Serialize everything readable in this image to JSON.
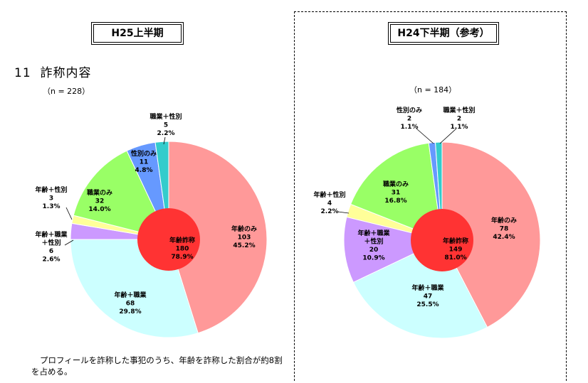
{
  "left": {
    "period": "H25上半期",
    "section_number": "11",
    "section_title": "詐称内容",
    "n_label": "（n = 228）"
  },
  "right": {
    "period": "H24下半期（参考）",
    "n_label": "（n = 184）"
  },
  "note": {
    "line1": "プロフィールを詐称した事犯のうち、年齢を詐称した割合が約8割",
    "line2": "を占める。"
  },
  "colors": {
    "age_only": "#ff9999",
    "age_job": "#ccffff",
    "age_job_sex": "#cc99ff",
    "age_sex": "#ffff99",
    "job_only": "#99ff66",
    "sex_only": "#6699ff",
    "job_sex": "#33cccc",
    "inner": "#ff3333"
  },
  "chart_data": [
    {
      "type": "pie",
      "title": "H25上半期",
      "n": 228,
      "slices": [
        {
          "label": "年齢のみ",
          "count": "103",
          "pct": "45.2%",
          "value": 103,
          "color_key": "age_only"
        },
        {
          "label": "年齢＋職業",
          "count": "68",
          "pct": "29.8%",
          "value": 68,
          "color_key": "age_job"
        },
        {
          "label": "年齢＋職業＋性別",
          "count": "6",
          "pct": "2.6%",
          "value": 6,
          "color_key": "age_job_sex"
        },
        {
          "label": "年齢＋性別",
          "count": "3",
          "pct": "1.3%",
          "value": 3,
          "color_key": "age_sex"
        },
        {
          "label": "職業のみ",
          "count": "32",
          "pct": "14.0%",
          "value": 32,
          "color_key": "job_only"
        },
        {
          "label": "性別のみ",
          "count": "11",
          "pct": "4.8%",
          "value": 11,
          "color_key": "sex_only"
        },
        {
          "label": "職業＋性別",
          "count": "5",
          "pct": "2.2%",
          "value": 5,
          "color_key": "job_sex"
        }
      ],
      "inner": {
        "label": "年齢詐称",
        "count": "180",
        "pct": "78.9%",
        "value": 180
      }
    },
    {
      "type": "pie",
      "title": "H24下半期（参考）",
      "n": 184,
      "slices": [
        {
          "label": "年齢のみ",
          "count": "78",
          "pct": "42.4%",
          "value": 78,
          "color_key": "age_only"
        },
        {
          "label": "年齢＋職業",
          "count": "47",
          "pct": "25.5%",
          "value": 47,
          "color_key": "age_job"
        },
        {
          "label": "年齢＋職業＋性別",
          "count": "20",
          "pct": "10.9%",
          "value": 20,
          "color_key": "age_job_sex"
        },
        {
          "label": "年齢＋性別",
          "count": "4",
          "pct": "2.2%",
          "value": 4,
          "color_key": "age_sex"
        },
        {
          "label": "職業のみ",
          "count": "31",
          "pct": "16.8%",
          "value": 31,
          "color_key": "job_only"
        },
        {
          "label": "性別のみ",
          "count": "2",
          "pct": "1.1%",
          "value": 2,
          "color_key": "sex_only"
        },
        {
          "label": "職業＋性別",
          "count": "2",
          "pct": "1.1%",
          "value": 2,
          "color_key": "job_sex"
        }
      ],
      "inner": {
        "label": "年齢詐称",
        "count": "149",
        "pct": "81.0%",
        "value": 149
      }
    }
  ]
}
